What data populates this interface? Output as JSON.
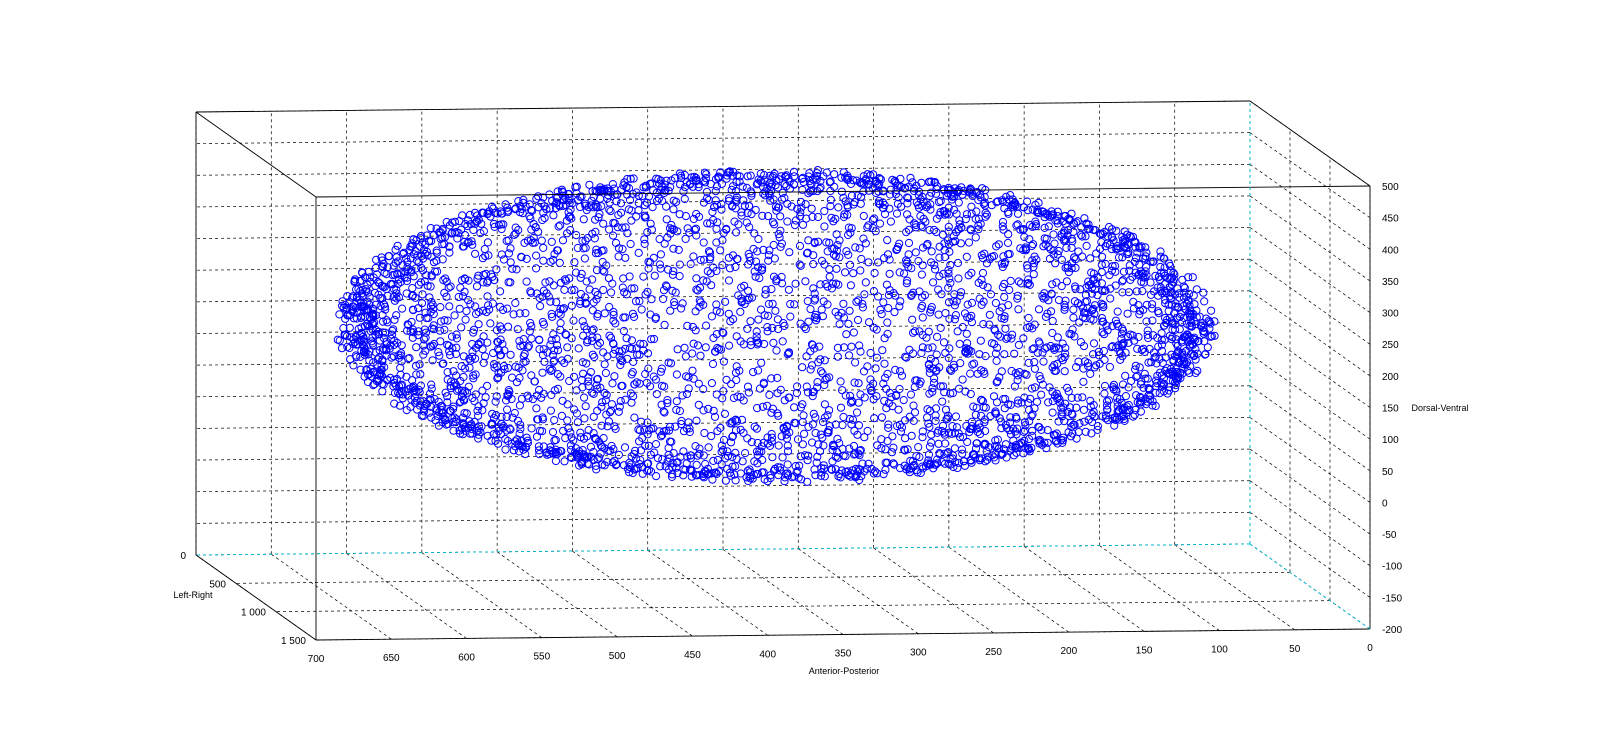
{
  "chart_data": {
    "type": "scatter",
    "projection": "3d",
    "title": "",
    "xlabel": "Anterior-Posterior",
    "ylabel": "Left-Right",
    "zlabel": "Dorsal-Ventral",
    "xlim": [
      0,
      700
    ],
    "ylim": [
      0,
      1500
    ],
    "zlim": [
      -200,
      500
    ],
    "x_ticks": [
      "700",
      "650",
      "600",
      "550",
      "500",
      "450",
      "400",
      "350",
      "300",
      "250",
      "200",
      "150",
      "100",
      "50",
      "0"
    ],
    "y_ticks": [
      "0",
      "500",
      "1 000",
      "1 500"
    ],
    "z_ticks": [
      "500",
      "450",
      "400",
      "350",
      "300",
      "250",
      "200",
      "150",
      "100",
      "50",
      "0",
      "-50",
      "-100",
      "-150",
      "-200"
    ],
    "grid": true,
    "legend": "none",
    "marker": "circle",
    "marker_color": "#0000ff",
    "series": [
      {
        "shape": "ellipsoid-shell",
        "center": [
          355,
          750,
          220
        ],
        "semi_axes": [
          285,
          700,
          235
        ],
        "point_count": 4000
      }
    ]
  }
}
